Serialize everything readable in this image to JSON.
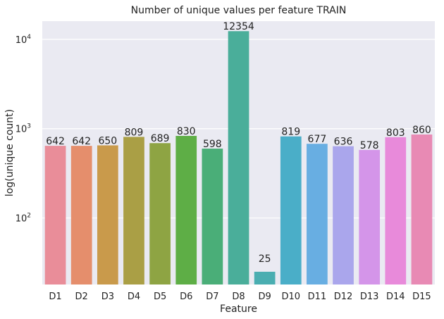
{
  "chart_data": {
    "type": "bar",
    "title": "Number of unique values per feature TRAIN",
    "xlabel": "Feature",
    "ylabel": "log(unique count)",
    "yscale": "log",
    "ylim": [
      18,
      16000
    ],
    "yticks": [
      {
        "value": 100,
        "base": "10",
        "exp": "2"
      },
      {
        "value": 1000,
        "base": "10",
        "exp": "3"
      },
      {
        "value": 10000,
        "base": "10",
        "exp": "4"
      }
    ],
    "grid": true,
    "categories": [
      "D1",
      "D2",
      "D3",
      "D4",
      "D5",
      "D6",
      "D7",
      "D8",
      "D9",
      "D10",
      "D11",
      "D12",
      "D13",
      "D14",
      "D15"
    ],
    "values": [
      642,
      642,
      650,
      809,
      689,
      830,
      598,
      12354,
      25,
      819,
      677,
      636,
      578,
      803,
      860
    ],
    "data_labels": [
      "642",
      "642",
      "650",
      "809",
      "689",
      "830",
      "598",
      "12354",
      "25",
      "819",
      "677",
      "636",
      "578",
      "803",
      "860"
    ],
    "colors": [
      "#e98d99",
      "#e58e6c",
      "#c99a4b",
      "#aa9f45",
      "#8ea443",
      "#5eae46",
      "#4aae78",
      "#4aae9a",
      "#4aaeb1",
      "#4aaec8",
      "#68aee2",
      "#aaa6ec",
      "#d495e9",
      "#e88ada",
      "#e88ab4"
    ],
    "background_color": "#eaeaf2",
    "grid_color": "#ffffff"
  }
}
